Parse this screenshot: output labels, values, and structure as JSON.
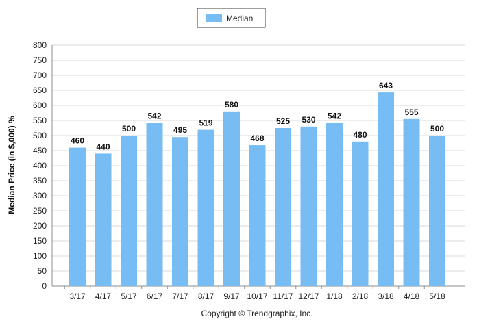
{
  "chart_data": {
    "type": "bar",
    "categories": [
      "3/17",
      "4/17",
      "5/17",
      "6/17",
      "7/17",
      "8/17",
      "9/17",
      "10/17",
      "11/17",
      "12/17",
      "1/18",
      "2/18",
      "3/18",
      "4/18",
      "5/18"
    ],
    "series": [
      {
        "name": "Median",
        "values": [
          460,
          440,
          500,
          542,
          495,
          519,
          580,
          468,
          525,
          530,
          542,
          480,
          643,
          555,
          500
        ]
      }
    ],
    "data_labels": [
      "460",
      "440",
      "500",
      "542",
      "495",
      "519",
      "580",
      "468",
      "525",
      "530",
      "542",
      "480",
      "643",
      "555",
      "500"
    ],
    "y_ticks": [
      "0",
      "50",
      "100",
      "150",
      "200",
      "250",
      "300",
      "350",
      "400",
      "450",
      "500",
      "550",
      "600",
      "650",
      "700",
      "750",
      "800"
    ],
    "ylabel": "Median Price (in $,000) %",
    "xlabel": "",
    "ylim": [
      0,
      800
    ],
    "grid": true,
    "legend_position": "top-center",
    "colors": {
      "bar": "#78bcf4",
      "grid": "#d9d9d9"
    }
  },
  "footer": {
    "copyright": "Copyright © Trendgraphix, Inc."
  }
}
